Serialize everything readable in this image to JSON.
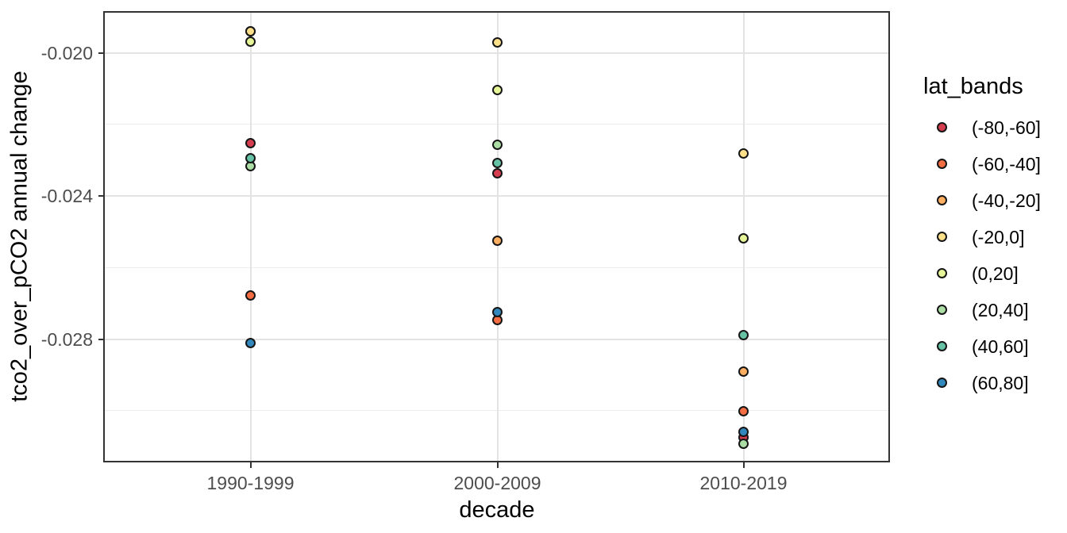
{
  "figure_style": {
    "background": "#FFFFFF",
    "panel_border_color": "#333333",
    "grid_major_color": "#E3E3E3",
    "grid_minor_color": "#EDEDED",
    "tick_label_color": "#4D4D4D",
    "axis_title_color": "#000000",
    "point_stroke_color": "#151515"
  },
  "chart_data": {
    "type": "scatter",
    "title": "",
    "xlabel": "decade",
    "ylabel": "tco2_over_pCO2 annual change",
    "categories": [
      "1990-1999",
      "2000-2009",
      "2010-2019"
    ],
    "y_ticks": [
      -0.02,
      -0.024,
      -0.028
    ],
    "y_tick_labels": [
      "-0.020",
      "-0.024",
      "-0.028"
    ],
    "y_minor_ticks": [
      -0.022,
      -0.026,
      -0.03
    ],
    "ylim": [
      -0.0189,
      -0.0314
    ],
    "grid": true,
    "legend": {
      "title": "lat_bands",
      "position": "right"
    },
    "series": [
      {
        "name": "(-80,-60]",
        "color": "#D53E4F",
        "values": [
          -0.02253,
          -0.02337,
          -0.03075
        ]
      },
      {
        "name": "(-60,-40]",
        "color": "#F46D43",
        "values": [
          -0.02678,
          -0.02747,
          -0.03002
        ]
      },
      {
        "name": "(-40,-20]",
        "color": "#FDAE61",
        "values": [
          -0.0194,
          -0.02525,
          -0.02891
        ]
      },
      {
        "name": "(-20,0]",
        "color": "#FEE08B",
        "values": [
          -0.0194,
          -0.01971,
          -0.02281
        ]
      },
      {
        "name": "(0,20]",
        "color": "#E6F598",
        "values": [
          -0.01969,
          -0.02104,
          -0.02519
        ]
      },
      {
        "name": "(20,40]",
        "color": "#ABDDA4",
        "values": [
          -0.02317,
          -0.02257,
          -0.03093
        ]
      },
      {
        "name": "(40,60]",
        "color": "#66C2A5",
        "values": [
          -0.02295,
          -0.02308,
          -0.02789
        ]
      },
      {
        "name": "(60,80]",
        "color": "#3288BD",
        "values": [
          -0.02811,
          -0.02725,
          -0.03059
        ]
      }
    ]
  }
}
